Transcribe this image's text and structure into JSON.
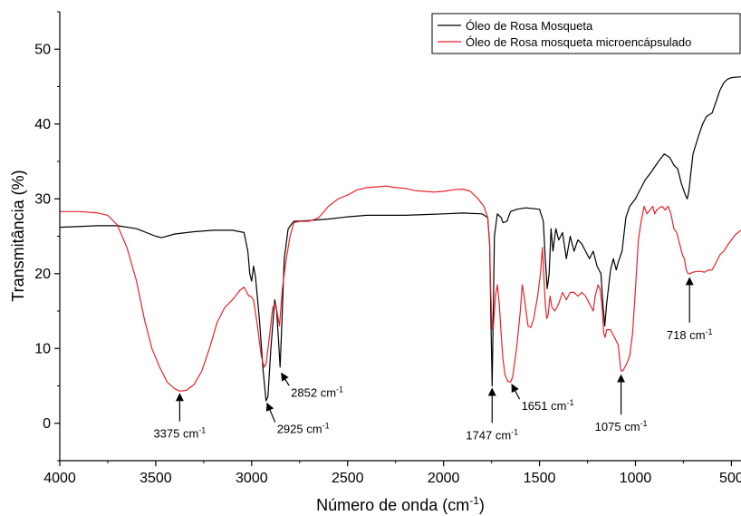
{
  "chart_data": {
    "type": "line",
    "xlabel": "Número de onda (cm",
    "xlabel_sup": "-1",
    "xlabel_end": ")",
    "ylabel": "Transmitância (%)",
    "xlim": [
      4000,
      450
    ],
    "ylim": [
      -5,
      55
    ],
    "x_reversed": true,
    "xticks": [
      4000,
      3500,
      3000,
      2500,
      2000,
      1500,
      1000,
      500
    ],
    "xtick_labels": [
      "4000",
      "3500",
      "3000",
      "2500",
      "2000",
      "1500",
      "1000",
      "500"
    ],
    "yticks": [
      0,
      10,
      20,
      30,
      40,
      50
    ],
    "ytick_labels": [
      "0",
      "10",
      "20",
      "30",
      "40",
      "50"
    ],
    "grid": false,
    "legend_position": "top-right",
    "series": [
      {
        "name": "Óleo de Rosa Mosqueta",
        "color": "#000000",
        "points": [
          [
            4000,
            26.2
          ],
          [
            3800,
            26.4
          ],
          [
            3700,
            26.4
          ],
          [
            3600,
            26.0
          ],
          [
            3500,
            25.0
          ],
          [
            3470,
            24.8
          ],
          [
            3400,
            25.3
          ],
          [
            3300,
            25.6
          ],
          [
            3200,
            25.8
          ],
          [
            3100,
            25.8
          ],
          [
            3040,
            25.5
          ],
          [
            3020,
            23.0
          ],
          [
            3010,
            20.0
          ],
          [
            3000,
            19.0
          ],
          [
            2990,
            21.0
          ],
          [
            2980,
            19.5
          ],
          [
            2960,
            14.0
          ],
          [
            2940,
            7.0
          ],
          [
            2925,
            3.0
          ],
          [
            2915,
            3.6
          ],
          [
            2900,
            10.0
          ],
          [
            2880,
            16.5
          ],
          [
            2870,
            15.0
          ],
          [
            2860,
            11.0
          ],
          [
            2852,
            7.5
          ],
          [
            2845,
            12.0
          ],
          [
            2830,
            22.0
          ],
          [
            2810,
            26.0
          ],
          [
            2780,
            27.0
          ],
          [
            2700,
            27.1
          ],
          [
            2600,
            27.3
          ],
          [
            2500,
            27.6
          ],
          [
            2400,
            27.8
          ],
          [
            2300,
            27.8
          ],
          [
            2200,
            27.8
          ],
          [
            2100,
            27.9
          ],
          [
            2000,
            28.0
          ],
          [
            1900,
            28.1
          ],
          [
            1800,
            28.0
          ],
          [
            1770,
            27.5
          ],
          [
            1760,
            24.0
          ],
          [
            1752,
            12.0
          ],
          [
            1747,
            5.0
          ],
          [
            1742,
            13.0
          ],
          [
            1735,
            25.0
          ],
          [
            1720,
            28.0
          ],
          [
            1700,
            27.5
          ],
          [
            1690,
            26.8
          ],
          [
            1670,
            27.0
          ],
          [
            1651,
            28.3
          ],
          [
            1620,
            28.6
          ],
          [
            1570,
            28.8
          ],
          [
            1500,
            28.6
          ],
          [
            1480,
            27.0
          ],
          [
            1470,
            22.0
          ],
          [
            1460,
            18.0
          ],
          [
            1450,
            20.0
          ],
          [
            1440,
            26.0
          ],
          [
            1430,
            23.0
          ],
          [
            1415,
            26.0
          ],
          [
            1400,
            24.5
          ],
          [
            1380,
            25.5
          ],
          [
            1360,
            22.0
          ],
          [
            1340,
            25.0
          ],
          [
            1320,
            23.0
          ],
          [
            1300,
            24.5
          ],
          [
            1280,
            24.0
          ],
          [
            1260,
            23.0
          ],
          [
            1240,
            22.0
          ],
          [
            1220,
            23.0
          ],
          [
            1200,
            21.0
          ],
          [
            1180,
            20.0
          ],
          [
            1170,
            16.0
          ],
          [
            1160,
            13.0
          ],
          [
            1150,
            16.0
          ],
          [
            1130,
            20.5
          ],
          [
            1115,
            22.0
          ],
          [
            1100,
            20.5
          ],
          [
            1090,
            21.5
          ],
          [
            1070,
            23.0
          ],
          [
            1050,
            27.5
          ],
          [
            1030,
            29.0
          ],
          [
            1000,
            30.0
          ],
          [
            980,
            31.0
          ],
          [
            950,
            32.5
          ],
          [
            920,
            33.5
          ],
          [
            880,
            35.0
          ],
          [
            850,
            36.0
          ],
          [
            820,
            35.5
          ],
          [
            800,
            34.5
          ],
          [
            780,
            34.0
          ],
          [
            760,
            32.0
          ],
          [
            740,
            30.5
          ],
          [
            730,
            30.0
          ],
          [
            722,
            31.0
          ],
          [
            700,
            36.0
          ],
          [
            670,
            38.5
          ],
          [
            650,
            40.0
          ],
          [
            630,
            41.0
          ],
          [
            600,
            41.5
          ],
          [
            580,
            43.0
          ],
          [
            560,
            44.5
          ],
          [
            540,
            45.5
          ],
          [
            520,
            46.0
          ],
          [
            500,
            46.2
          ],
          [
            460,
            46.3
          ],
          [
            450,
            46.3
          ]
        ]
      },
      {
        "name": "Óleo de Rosa mosqueta microencápsulado",
        "color": "#e8232a",
        "points": [
          [
            4000,
            28.3
          ],
          [
            3900,
            28.3
          ],
          [
            3800,
            28.1
          ],
          [
            3750,
            27.8
          ],
          [
            3700,
            26.5
          ],
          [
            3650,
            23.5
          ],
          [
            3600,
            19.0
          ],
          [
            3560,
            14.0
          ],
          [
            3520,
            10.0
          ],
          [
            3480,
            7.5
          ],
          [
            3440,
            5.5
          ],
          [
            3400,
            4.6
          ],
          [
            3375,
            4.3
          ],
          [
            3340,
            4.4
          ],
          [
            3300,
            5.2
          ],
          [
            3260,
            7.0
          ],
          [
            3220,
            10.0
          ],
          [
            3180,
            13.5
          ],
          [
            3140,
            15.5
          ],
          [
            3100,
            16.5
          ],
          [
            3060,
            17.8
          ],
          [
            3040,
            18.2
          ],
          [
            3025,
            17.5
          ],
          [
            3015,
            17.0
          ],
          [
            3005,
            17.0
          ],
          [
            2990,
            16.5
          ],
          [
            2970,
            13.0
          ],
          [
            2950,
            9.0
          ],
          [
            2935,
            7.5
          ],
          [
            2925,
            8.0
          ],
          [
            2910,
            11.0
          ],
          [
            2890,
            15.5
          ],
          [
            2875,
            16.0
          ],
          [
            2865,
            14.5
          ],
          [
            2855,
            13.0
          ],
          [
            2840,
            18.0
          ],
          [
            2820,
            22.0
          ],
          [
            2800,
            25.0
          ],
          [
            2780,
            26.8
          ],
          [
            2750,
            27.0
          ],
          [
            2700,
            27.0
          ],
          [
            2650,
            27.5
          ],
          [
            2600,
            29.0
          ],
          [
            2550,
            30.0
          ],
          [
            2500,
            30.5
          ],
          [
            2450,
            31.2
          ],
          [
            2400,
            31.5
          ],
          [
            2350,
            31.6
          ],
          [
            2300,
            31.7
          ],
          [
            2250,
            31.5
          ],
          [
            2200,
            31.4
          ],
          [
            2150,
            31.1
          ],
          [
            2100,
            31.0
          ],
          [
            2050,
            30.9
          ],
          [
            2000,
            31.0
          ],
          [
            1950,
            31.2
          ],
          [
            1900,
            31.3
          ],
          [
            1860,
            31.0
          ],
          [
            1820,
            30.0
          ],
          [
            1790,
            29.0
          ],
          [
            1770,
            27.5
          ],
          [
            1760,
            24.0
          ],
          [
            1755,
            18.0
          ],
          [
            1747,
            12.5
          ],
          [
            1740,
            13.0
          ],
          [
            1730,
            17.0
          ],
          [
            1720,
            18.5
          ],
          [
            1710,
            16.0
          ],
          [
            1700,
            12.0
          ],
          [
            1690,
            8.5
          ],
          [
            1680,
            6.5
          ],
          [
            1665,
            5.6
          ],
          [
            1651,
            5.5
          ],
          [
            1640,
            6.2
          ],
          [
            1620,
            10.0
          ],
          [
            1600,
            15.0
          ],
          [
            1590,
            18.5
          ],
          [
            1580,
            17.0
          ],
          [
            1570,
            15.0
          ],
          [
            1560,
            13.0
          ],
          [
            1545,
            12.8
          ],
          [
            1530,
            14.0
          ],
          [
            1510,
            17.0
          ],
          [
            1495,
            20.0
          ],
          [
            1485,
            23.5
          ],
          [
            1478,
            20.0
          ],
          [
            1470,
            16.0
          ],
          [
            1462,
            14.0
          ],
          [
            1455,
            14.5
          ],
          [
            1445,
            17.0
          ],
          [
            1435,
            15.5
          ],
          [
            1420,
            15.0
          ],
          [
            1400,
            16.0
          ],
          [
            1380,
            17.5
          ],
          [
            1360,
            16.5
          ],
          [
            1340,
            17.5
          ],
          [
            1320,
            17.5
          ],
          [
            1300,
            17.0
          ],
          [
            1280,
            17.5
          ],
          [
            1260,
            17.0
          ],
          [
            1240,
            16.0
          ],
          [
            1220,
            15.0
          ],
          [
            1210,
            17.0
          ],
          [
            1195,
            18.5
          ],
          [
            1185,
            18.0
          ],
          [
            1175,
            16.0
          ],
          [
            1165,
            12.0
          ],
          [
            1158,
            11.5
          ],
          [
            1150,
            12.5
          ],
          [
            1130,
            12.5
          ],
          [
            1110,
            11.5
          ],
          [
            1090,
            10.5
          ],
          [
            1080,
            8.0
          ],
          [
            1075,
            7.0
          ],
          [
            1065,
            7.0
          ],
          [
            1055,
            7.5
          ],
          [
            1045,
            8.0
          ],
          [
            1030,
            9.0
          ],
          [
            1015,
            12.0
          ],
          [
            1000,
            18.0
          ],
          [
            985,
            24.5
          ],
          [
            970,
            27.0
          ],
          [
            955,
            29.0
          ],
          [
            940,
            28.0
          ],
          [
            925,
            28.5
          ],
          [
            910,
            29.0
          ],
          [
            900,
            28.0
          ],
          [
            890,
            28.5
          ],
          [
            875,
            28.8
          ],
          [
            860,
            29.0
          ],
          [
            845,
            28.5
          ],
          [
            830,
            29.0
          ],
          [
            815,
            28.0
          ],
          [
            800,
            26.0
          ],
          [
            785,
            25.5
          ],
          [
            770,
            24.0
          ],
          [
            755,
            22.5
          ],
          [
            745,
            22.0
          ],
          [
            735,
            20.5
          ],
          [
            725,
            20.0
          ],
          [
            715,
            20.0
          ],
          [
            700,
            20.2
          ],
          [
            680,
            20.3
          ],
          [
            660,
            20.3
          ],
          [
            640,
            20.2
          ],
          [
            620,
            20.5
          ],
          [
            600,
            20.5
          ],
          [
            580,
            21.5
          ],
          [
            560,
            22.5
          ],
          [
            540,
            23.0
          ],
          [
            520,
            23.8
          ],
          [
            500,
            24.5
          ],
          [
            480,
            25.2
          ],
          [
            460,
            25.6
          ],
          [
            450,
            25.8
          ]
        ]
      }
    ],
    "annotations": [
      {
        "text": "3375 cm",
        "sup": "-1",
        "x": 3375,
        "y": 4.3,
        "label_x": 3375,
        "label_y": -1.2,
        "label_anchor": "middle"
      },
      {
        "text": "2925 cm",
        "sup": "-1",
        "x": 2925,
        "y": 3.0,
        "label_x": 2925,
        "label_y": -0.6,
        "label_anchor": "start"
      },
      {
        "text": "2852 cm",
        "sup": "-1",
        "x": 2852,
        "y": 7.0,
        "label_x": 2852,
        "label_y": 4.3,
        "label_anchor": "start"
      },
      {
        "text": "1747 cm",
        "sup": "-1",
        "x": 1747,
        "y": 5.0,
        "label_x": 1747,
        "label_y": -1.4,
        "label_anchor": "middle"
      },
      {
        "text": "1651 cm",
        "sup": "-1",
        "x": 1651,
        "y": 5.5,
        "label_x": 1651,
        "label_y": 2.5,
        "label_anchor": "start"
      },
      {
        "text": "1075 cm",
        "sup": "-1",
        "x": 1075,
        "y": 6.8,
        "label_x": 1075,
        "label_y": -0.3,
        "label_anchor": "middle"
      },
      {
        "text": "718 cm",
        "sup": "-1",
        "x": 718,
        "y": 19.8,
        "label_x": 718,
        "label_y": 12.0,
        "label_anchor": "middle"
      }
    ]
  }
}
